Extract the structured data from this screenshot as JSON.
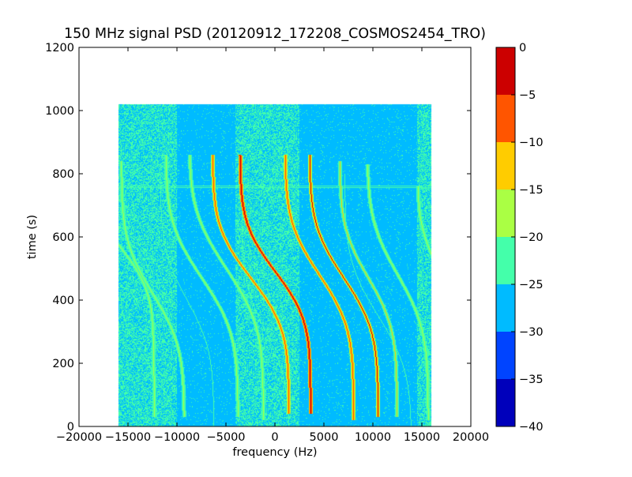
{
  "chart_data": {
    "type": "heatmap",
    "title": "150 MHz signal PSD (20120912_172208_COSMOS2454_TRO)",
    "xlabel": "frequency (Hz)",
    "ylabel": "time (s)",
    "xlim": [
      -20000,
      20000
    ],
    "ylim": [
      0,
      1200
    ],
    "x_ticks": [
      -20000,
      -15000,
      -10000,
      -5000,
      0,
      5000,
      10000,
      15000,
      20000
    ],
    "y_ticks": [
      0,
      200,
      400,
      600,
      800,
      1000
    ],
    "data_extent": {
      "x": [
        -16000,
        16000
      ],
      "y": [
        0,
        1020
      ]
    },
    "grid": false,
    "colormap": "jet",
    "colorbar": {
      "levels": [
        -40,
        -35,
        -30,
        -25,
        -20,
        -15,
        -10,
        -5,
        0
      ],
      "tick_labels": [
        "−40",
        "−35",
        "−30",
        "−25",
        "−20",
        "−15",
        "−10",
        "−5",
        "0"
      ],
      "colors": [
        "#0000bb",
        "#0044ff",
        "#00bbff",
        "#44ffaa",
        "#aaff44",
        "#ffcc00",
        "#ff5500",
        "#cc0000"
      ]
    },
    "background_level": -27.5,
    "noisy_column_bands": [
      {
        "x": [
          -16000,
          -10000
        ],
        "level": -23
      },
      {
        "x": [
          -4000,
          2500
        ],
        "level": -24
      },
      {
        "x": [
          14500,
          16000
        ],
        "level": -24
      }
    ],
    "horizontal_lines": [
      {
        "y": 757,
        "level": -22
      },
      {
        "y": 762,
        "level": -22
      }
    ],
    "traces": [
      {
        "t_center": 575,
        "f_center": -16000,
        "amplitude": 3700,
        "time_scale": 200,
        "t_range": [
          30,
          600
        ],
        "peak_level": -18
      },
      {
        "t_center": 420,
        "f_center": -12500,
        "amplitude": 3300,
        "time_scale": 230,
        "t_range": [
          30,
          840
        ],
        "peak_level": -17
      },
      {
        "t_center": 470,
        "f_center": -7500,
        "amplitude": 3800,
        "time_scale": 240,
        "t_range": [
          30,
          860
        ],
        "peak_level": -19
      },
      {
        "t_center": 500,
        "f_center": -5000,
        "amplitude": 3900,
        "time_scale": 250,
        "t_range": [
          20,
          860
        ],
        "peak_level": -20
      },
      {
        "t_center": 470,
        "f_center": -2500,
        "amplitude": 4000,
        "time_scale": 220,
        "t_range": [
          40,
          860
        ],
        "peak_level": -8
      },
      {
        "t_center": 490,
        "f_center": 0,
        "amplitude": 3700,
        "time_scale": 210,
        "t_range": [
          40,
          860
        ],
        "peak_level": -3
      },
      {
        "t_center": 480,
        "f_center": 4500,
        "amplitude": 3600,
        "time_scale": 230,
        "t_range": [
          20,
          860
        ],
        "peak_level": -8
      },
      {
        "t_center": 470,
        "f_center": 7000,
        "amplitude": 3600,
        "time_scale": 230,
        "t_range": [
          30,
          860
        ],
        "peak_level": -5
      },
      {
        "t_center": 470,
        "f_center": 9500,
        "amplitude": 3000,
        "time_scale": 220,
        "t_range": [
          30,
          840
        ],
        "peak_level": -15
      },
      {
        "t_center": 480,
        "f_center": 12500,
        "amplitude": 3200,
        "time_scale": 240,
        "t_range": [
          20,
          830
        ],
        "peak_level": -17
      },
      {
        "t_center": 540,
        "f_center": 16000,
        "amplitude": 1500,
        "time_scale": 160,
        "t_range": [
          30,
          760
        ],
        "peak_level": -20
      }
    ],
    "faint_traces": [
      {
        "t_center": 200,
        "f_center": -13000,
        "amplitude": 3000,
        "time_scale": 180,
        "t_range": [
          0,
          420
        ],
        "peak_level": -23
      },
      {
        "t_center": 400,
        "f_center": -9000,
        "amplitude": 2800,
        "time_scale": 220,
        "t_range": [
          0,
          800
        ],
        "peak_level": -24
      },
      {
        "t_center": 300,
        "f_center": -1000,
        "amplitude": 2500,
        "time_scale": 220,
        "t_range": [
          0,
          700
        ],
        "peak_level": -24
      },
      {
        "t_center": 350,
        "f_center": 10500,
        "amplitude": 3500,
        "time_scale": 240,
        "t_range": [
          0,
          800
        ],
        "peak_level": -24
      }
    ]
  }
}
